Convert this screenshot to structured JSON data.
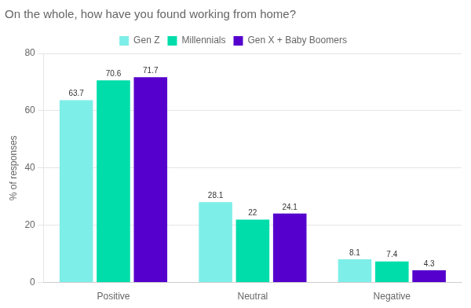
{
  "chart_data": {
    "type": "bar",
    "title": "On the whole, how have you found working from home?",
    "categories": [
      "Positive",
      "Neutral",
      "Negative"
    ],
    "series": [
      {
        "name": "Gen Z",
        "color": "#7EEEE8",
        "values": [
          63.7,
          28.1,
          8.1
        ]
      },
      {
        "name": "Millennials",
        "color": "#00DDAA",
        "values": [
          70.6,
          22.0,
          7.4
        ]
      },
      {
        "name": "Gen X + Baby Boomers",
        "color": "#5500CC",
        "values": [
          71.7,
          24.1,
          4.3
        ]
      }
    ],
    "ylabel": "% of responses",
    "ylim": [
      0,
      80
    ],
    "yticks": [
      0,
      20,
      40,
      60,
      80
    ],
    "grid": true,
    "legend": "top",
    "data_labels": true
  }
}
